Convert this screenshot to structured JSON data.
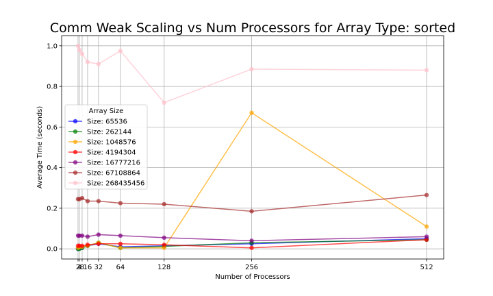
{
  "chart_data": {
    "type": "line",
    "title": "Comm Weak Scaling vs Num Processors for Array Type: sorted",
    "xlabel": "Number of Processors",
    "ylabel": "Average Time (seconds)",
    "x": [
      2,
      4,
      8,
      16,
      32,
      64,
      128,
      256,
      512
    ],
    "x_tick_labels": [
      "2",
      "4",
      "8",
      "16",
      "32",
      "64",
      "128",
      "256",
      "512"
    ],
    "xlim": [
      -22,
      537
    ],
    "ylim": [
      -0.05,
      1.05
    ],
    "y_ticks": [
      0.0,
      0.2,
      0.4,
      0.6,
      0.8,
      1.0
    ],
    "y_tick_labels": [
      "0.0",
      "0.2",
      "0.4",
      "0.6",
      "0.8",
      "1.0"
    ],
    "grid": true,
    "legend": {
      "title": "Array Size",
      "placement": "center-left"
    },
    "series": [
      {
        "name": "Size: 65536",
        "color": "#0000ff",
        "values": [
          0.0,
          0.002,
          0.005,
          0.015,
          0.025,
          0.01,
          0.015,
          0.025,
          0.05
        ]
      },
      {
        "name": "Size: 262144",
        "color": "#008000",
        "values": [
          0.0,
          0.0,
          0.005,
          0.015,
          0.03,
          0.005,
          0.012,
          0.03,
          0.045
        ]
      },
      {
        "name": "Size: 1048576",
        "color": "#ffa500",
        "values": [
          0.005,
          0.01,
          0.01,
          0.015,
          0.03,
          0.005,
          0.005,
          0.67,
          0.11
        ]
      },
      {
        "name": "Size: 4194304",
        "color": "#ff0000",
        "values": [
          0.015,
          0.015,
          0.015,
          0.02,
          0.025,
          0.025,
          0.02,
          0.005,
          0.045
        ]
      },
      {
        "name": "Size: 16777216",
        "color": "#800080",
        "values": [
          0.065,
          0.065,
          0.065,
          0.06,
          0.07,
          0.065,
          0.055,
          0.04,
          0.06
        ]
      },
      {
        "name": "Size: 67108864",
        "color": "#a52a2a",
        "values": [
          0.245,
          0.245,
          0.25,
          0.235,
          0.235,
          0.225,
          0.22,
          0.185,
          0.265
        ]
      },
      {
        "name": "Size: 268435456",
        "color": "#ffc0cb",
        "values": [
          1.0,
          0.98,
          0.96,
          0.92,
          0.91,
          0.975,
          0.72,
          0.885,
          0.88
        ]
      }
    ]
  }
}
